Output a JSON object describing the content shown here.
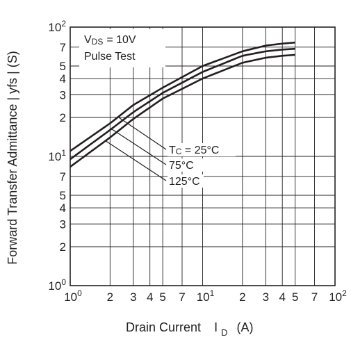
{
  "chart_data": {
    "type": "line",
    "title": "",
    "xlabel": "Drain Current",
    "xlabel_symbol": "I",
    "xlabel_subscript": "D",
    "xlabel_unit": "(A)",
    "ylabel": "Forward Transfer Admittance  | yfs |  (S)",
    "x_scale": "log",
    "y_scale": "log",
    "xlim": [
      1,
      100
    ],
    "ylim": [
      1,
      100
    ],
    "grid": true,
    "x_ticks": [
      {
        "value": 1,
        "base": "10",
        "exp": "0"
      },
      {
        "value": 2,
        "base": "2",
        "exp": ""
      },
      {
        "value": 3,
        "base": "3",
        "exp": ""
      },
      {
        "value": 4,
        "base": "4",
        "exp": ""
      },
      {
        "value": 5,
        "base": "5",
        "exp": ""
      },
      {
        "value": 7,
        "base": "7",
        "exp": ""
      },
      {
        "value": 10,
        "base": "10",
        "exp": "1"
      },
      {
        "value": 20,
        "base": "2",
        "exp": ""
      },
      {
        "value": 30,
        "base": "3",
        "exp": ""
      },
      {
        "value": 40,
        "base": "4",
        "exp": ""
      },
      {
        "value": 50,
        "base": "5",
        "exp": ""
      },
      {
        "value": 70,
        "base": "7",
        "exp": ""
      },
      {
        "value": 100,
        "base": "10",
        "exp": "2"
      }
    ],
    "y_ticks": [
      {
        "value": 1,
        "base": "10",
        "exp": "0"
      },
      {
        "value": 2,
        "base": "2",
        "exp": ""
      },
      {
        "value": 3,
        "base": "3",
        "exp": ""
      },
      {
        "value": 4,
        "base": "4",
        "exp": ""
      },
      {
        "value": 5,
        "base": "5",
        "exp": ""
      },
      {
        "value": 7,
        "base": "7",
        "exp": ""
      },
      {
        "value": 10,
        "base": "10",
        "exp": "1"
      },
      {
        "value": 20,
        "base": "2",
        "exp": ""
      },
      {
        "value": 30,
        "base": "3",
        "exp": ""
      },
      {
        "value": 40,
        "base": "4",
        "exp": ""
      },
      {
        "value": 50,
        "base": "5",
        "exp": ""
      },
      {
        "value": 70,
        "base": "7",
        "exp": ""
      },
      {
        "value": 100,
        "base": "10",
        "exp": "2"
      }
    ],
    "conditions": {
      "vds_symbol": "V",
      "vds_subscript": "DS",
      "vds_value": "= 10V",
      "test": "Pulse Test"
    },
    "series": [
      {
        "name": "Tc = 25°C",
        "x": [
          1,
          2,
          3,
          5,
          10,
          20,
          30,
          40,
          50
        ],
        "y": [
          11,
          18,
          25,
          34,
          50,
          65,
          72,
          74.5,
          76
        ]
      },
      {
        "name": "75°C",
        "x": [
          1,
          2,
          3,
          5,
          10,
          20,
          30,
          40,
          50
        ],
        "y": [
          9.5,
          16,
          22,
          31,
          45,
          60,
          65,
          67,
          68
        ]
      },
      {
        "name": "125°C",
        "x": [
          1,
          2,
          3,
          5,
          10,
          20,
          30,
          40,
          50
        ],
        "y": [
          8.3,
          14,
          19.5,
          28,
          40,
          53,
          58,
          60,
          61
        ]
      }
    ],
    "legend_callouts": [
      {
        "series": 0,
        "symbol": "T",
        "subscript": "C",
        "text": " = 25°C",
        "anchor_x": 2.3
      },
      {
        "series": 1,
        "symbol": "",
        "subscript": "",
        "text": "75°C",
        "anchor_x": 2.05
      },
      {
        "series": 2,
        "symbol": "",
        "subscript": "",
        "text": "125°C",
        "anchor_x": 1.85
      }
    ]
  }
}
